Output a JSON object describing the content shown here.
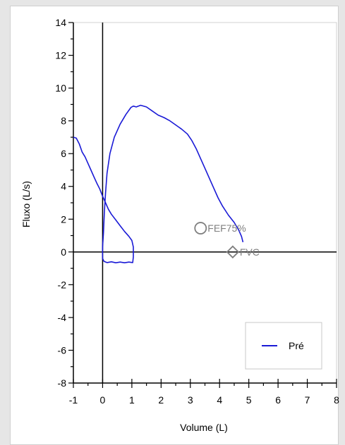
{
  "chart_data": {
    "type": "line",
    "xlabel": "Volume (L)",
    "ylabel": "Fluxo (L/s)",
    "xlim": [
      -1,
      8
    ],
    "ylim": [
      -8,
      14
    ],
    "x_ticks": [
      -1,
      0,
      1,
      2,
      3,
      4,
      5,
      6,
      7,
      8
    ],
    "x_tick_labels": [
      "-1",
      "0",
      "1",
      "2",
      "3",
      "4",
      "5",
      "6",
      "7",
      "8"
    ],
    "y_ticks": [
      -8,
      -6,
      -4,
      -2,
      0,
      2,
      4,
      6,
      8,
      10,
      12,
      14
    ],
    "y_tick_labels": [
      "-8",
      "-6",
      "-4",
      "-2",
      "0",
      "2",
      "4",
      "6",
      "8",
      "10",
      "12",
      "14"
    ],
    "grid": false,
    "legend_position": "bottom-right",
    "series": [
      {
        "name": "Pré",
        "color": "#1a1ad6",
        "points": [
          [
            -1.0,
            7.0
          ],
          [
            -0.9,
            6.95
          ],
          [
            -0.8,
            6.6
          ],
          [
            -0.7,
            6.1
          ],
          [
            -0.6,
            5.8
          ],
          [
            -0.5,
            5.4
          ],
          [
            -0.4,
            5.0
          ],
          [
            -0.3,
            4.6
          ],
          [
            -0.2,
            4.2
          ],
          [
            -0.1,
            3.85
          ],
          [
            0.0,
            3.4
          ],
          [
            0.1,
            3.0
          ],
          [
            0.2,
            2.6
          ],
          [
            0.3,
            2.3
          ],
          [
            0.45,
            1.95
          ],
          [
            0.6,
            1.6
          ],
          [
            0.75,
            1.25
          ],
          [
            0.9,
            0.95
          ],
          [
            1.0,
            0.7
          ],
          [
            1.05,
            0.3
          ],
          [
            1.05,
            -0.3
          ],
          [
            1.03,
            -0.65
          ],
          [
            0.9,
            -0.62
          ],
          [
            0.75,
            -0.66
          ],
          [
            0.6,
            -0.62
          ],
          [
            0.45,
            -0.66
          ],
          [
            0.3,
            -0.6
          ],
          [
            0.15,
            -0.65
          ],
          [
            0.05,
            -0.58
          ],
          [
            0.0,
            -0.4
          ],
          [
            0.0,
            0.3
          ],
          [
            0.03,
            1.2
          ],
          [
            0.06,
            2.4
          ],
          [
            0.1,
            3.6
          ],
          [
            0.15,
            4.8
          ],
          [
            0.25,
            6.0
          ],
          [
            0.4,
            7.0
          ],
          [
            0.6,
            7.8
          ],
          [
            0.8,
            8.4
          ],
          [
            0.97,
            8.82
          ],
          [
            1.05,
            8.9
          ],
          [
            1.15,
            8.85
          ],
          [
            1.3,
            8.95
          ],
          [
            1.5,
            8.85
          ],
          [
            1.7,
            8.6
          ],
          [
            1.9,
            8.35
          ],
          [
            2.1,
            8.2
          ],
          [
            2.3,
            8.0
          ],
          [
            2.5,
            7.75
          ],
          [
            2.7,
            7.5
          ],
          [
            2.9,
            7.2
          ],
          [
            3.05,
            6.8
          ],
          [
            3.2,
            6.3
          ],
          [
            3.35,
            5.7
          ],
          [
            3.5,
            5.1
          ],
          [
            3.65,
            4.5
          ],
          [
            3.8,
            3.9
          ],
          [
            3.95,
            3.3
          ],
          [
            4.1,
            2.8
          ],
          [
            4.3,
            2.25
          ],
          [
            4.5,
            1.8
          ],
          [
            4.65,
            1.35
          ],
          [
            4.75,
            0.95
          ],
          [
            4.8,
            0.6
          ]
        ]
      }
    ],
    "markers": [
      {
        "label": "FEF75%",
        "shape": "circle",
        "x": 3.35,
        "y": 1.45,
        "color": "#7f7f7f"
      },
      {
        "label": "FVC",
        "shape": "diamond",
        "x": 4.45,
        "y": 0.0,
        "color": "#7f7f7f"
      }
    ]
  }
}
